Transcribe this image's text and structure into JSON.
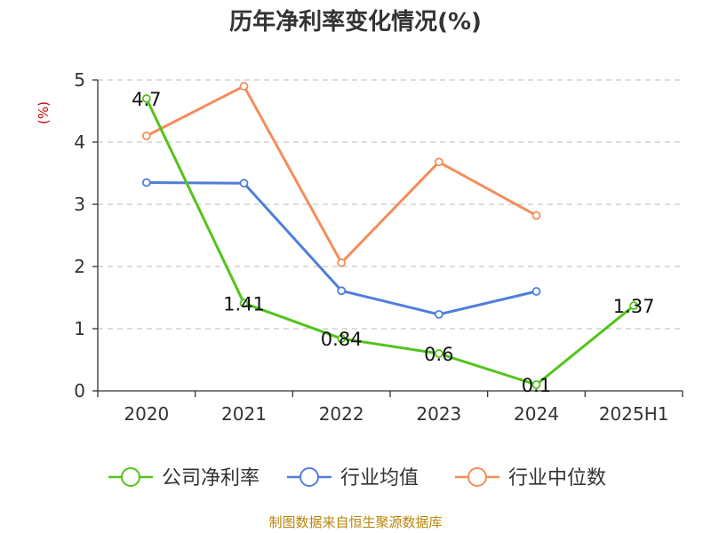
{
  "chart_data": {
    "type": "line",
    "title": "历年净利率变化情况(%)",
    "y_unit": "(%)",
    "categories": [
      "2020",
      "2021",
      "2022",
      "2023",
      "2024",
      "2025H1"
    ],
    "yticks": [
      "0",
      "1",
      "2",
      "3",
      "4",
      "5"
    ],
    "ylim": [
      0,
      5
    ],
    "grid": true,
    "legend_position": "bottom",
    "series": [
      {
        "name": "公司净利率",
        "color": "#52c41a",
        "values": [
          4.7,
          1.41,
          0.84,
          0.6,
          0.1,
          1.37
        ],
        "labels": [
          "4.7",
          "1.41",
          "0.84",
          "0.6",
          "0.1",
          "1.37"
        ]
      },
      {
        "name": "行业均值",
        "color": "#4e7fdb",
        "values": [
          3.35,
          3.34,
          1.61,
          1.23,
          1.6,
          null
        ]
      },
      {
        "name": "行业中位数",
        "color": "#f58d5a",
        "values": [
          4.1,
          4.9,
          2.06,
          3.68,
          2.82,
          null
        ]
      }
    ],
    "source": "制图数据来自恒生聚源数据库"
  }
}
